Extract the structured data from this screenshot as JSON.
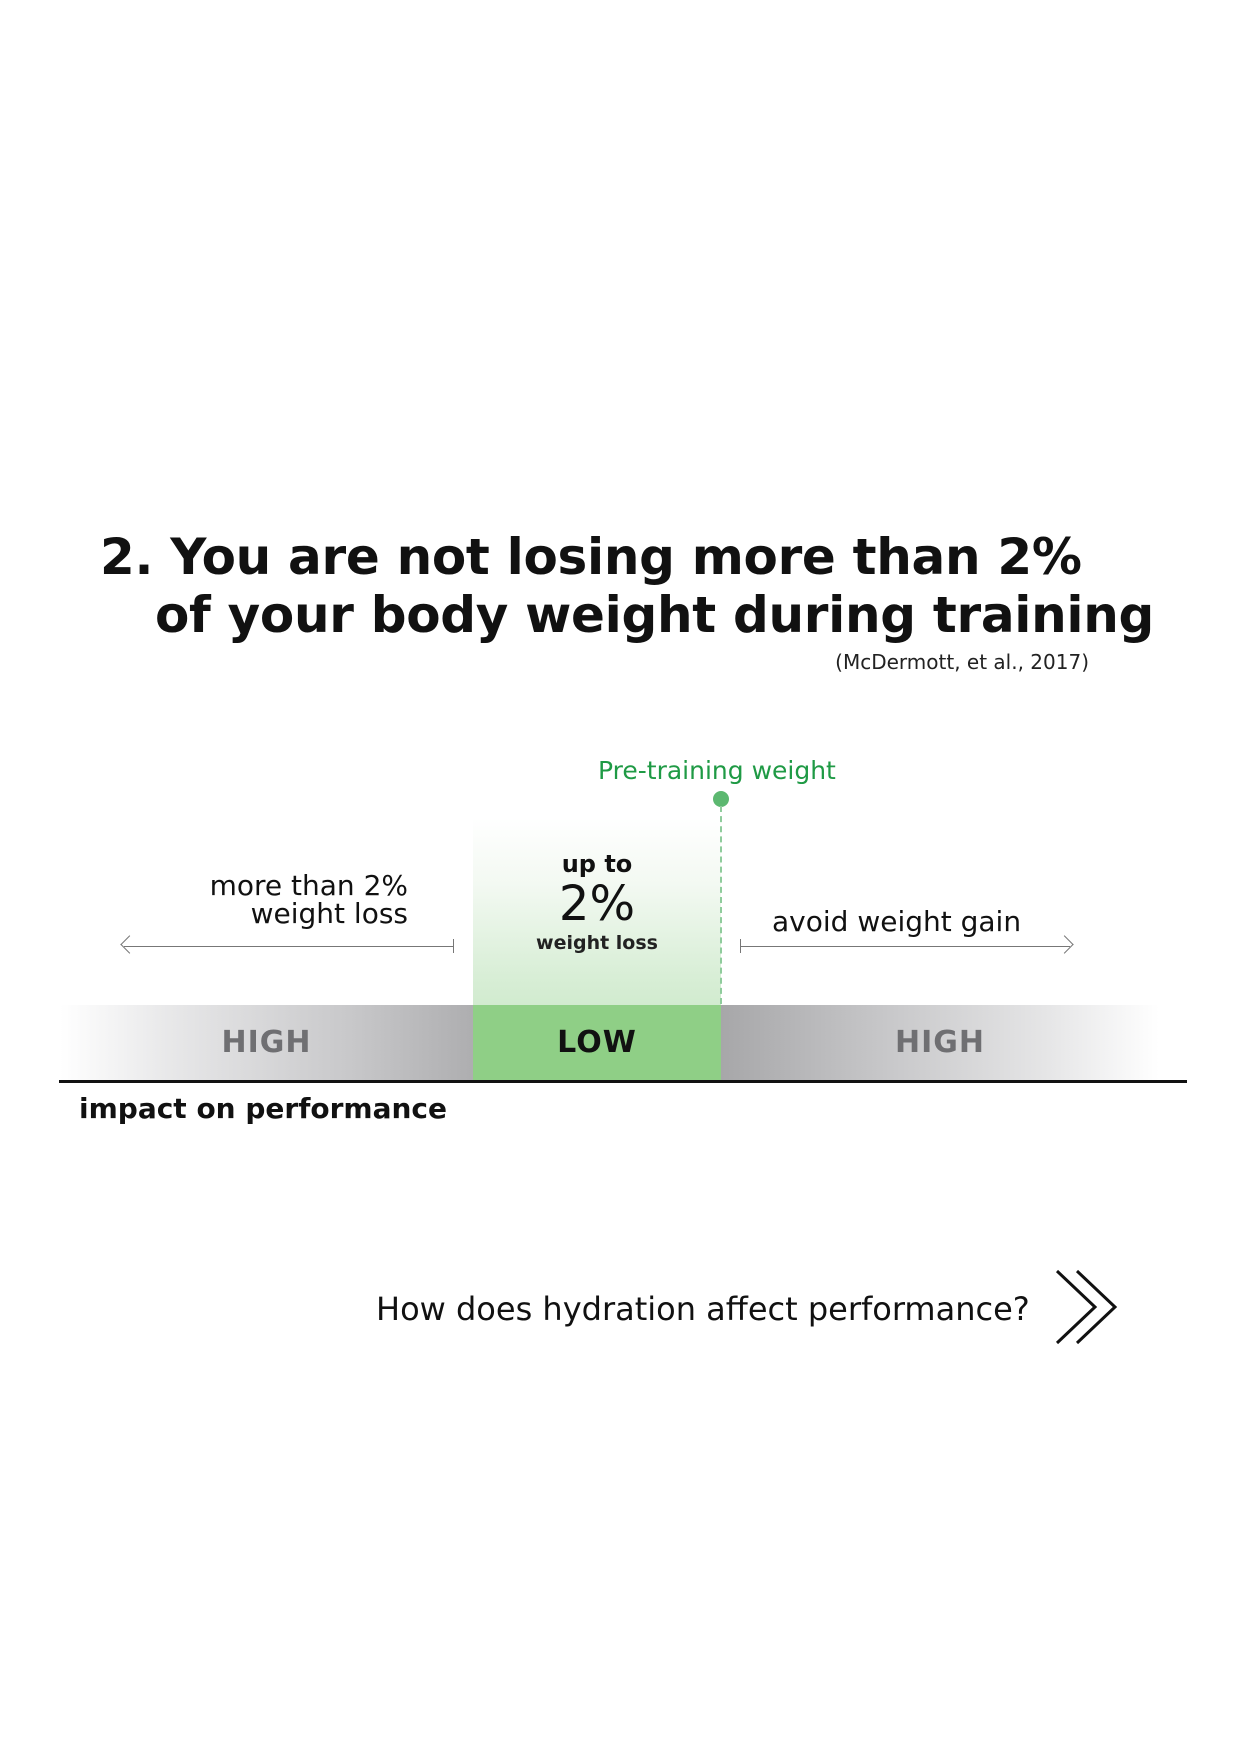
{
  "heading": {
    "line1": "2. You are not losing more than 2%",
    "line2": "of your body weight during training",
    "citation": "(McDermott, et al., 2017)"
  },
  "diagram": {
    "marker_label": "Pre-training weight",
    "zone": {
      "prefix": "up to",
      "value": "2%",
      "suffix": "weight loss"
    },
    "left_region": {
      "label_line1": "more than 2%",
      "label_line2": "weight loss"
    },
    "right_region": {
      "label": "avoid weight gain"
    },
    "bands": {
      "left": "HIGH",
      "middle": "LOW",
      "right": "HIGH"
    },
    "axis_label": "impact on performance"
  },
  "navigation": {
    "next_question": "How does hydration affect performance?",
    "icon": "double-chevron-right-icon"
  },
  "colors": {
    "accent_green": "#1f9a45",
    "band_green": "#8fcf86",
    "band_grey": "#aeaeb0"
  }
}
